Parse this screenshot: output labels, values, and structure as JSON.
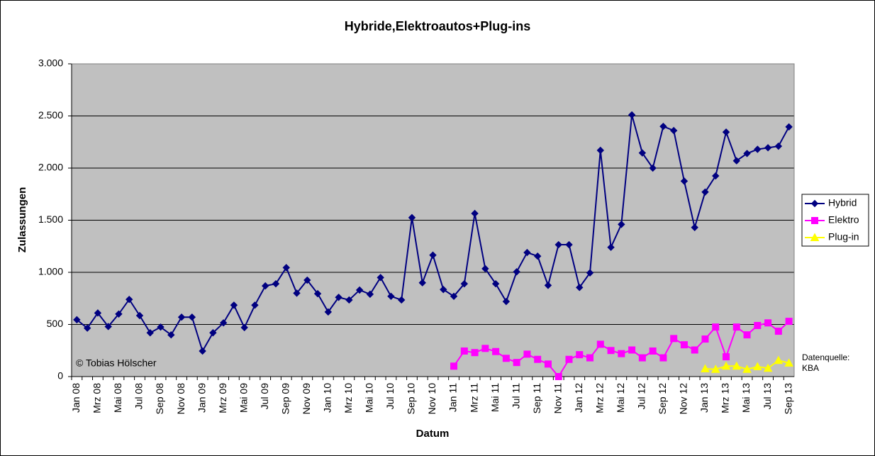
{
  "chart_data": {
    "type": "line",
    "title": "Hybride,Elektroautos+Plug-ins",
    "x_label": "Datum",
    "y_label": "Zulassungen",
    "copyright": "© Tobias Hölscher",
    "source": [
      "Datenquelle:",
      "KBA"
    ],
    "categories": [
      "Jan 08",
      null,
      "Mrz 08",
      null,
      "Mai 08",
      null,
      "Jul 08",
      null,
      "Sep 08",
      null,
      "Nov 08",
      null,
      "Jan 09",
      null,
      "Mrz 09",
      null,
      "Mai 09",
      null,
      "Jul 09",
      null,
      "Sep 09",
      null,
      "Nov 09",
      null,
      "Jan 10",
      null,
      "Mrz 10",
      null,
      "Mai 10",
      null,
      "Jul 10",
      null,
      "Sep 10",
      null,
      "Nov 10",
      null,
      "Jan 11",
      null,
      "Mrz 11",
      null,
      "Mai 11",
      null,
      "Jul 11",
      null,
      "Sep 11",
      null,
      "Nov 11",
      null,
      "Jan 12",
      null,
      "Mrz 12",
      null,
      "Mai 12",
      null,
      "Jul 12",
      null,
      "Sep 12",
      null,
      "Nov 12",
      null,
      "Jan 13",
      null,
      "Mrz 13",
      null,
      "Mai 13",
      null,
      "Jul 13",
      null,
      "Sep 13"
    ],
    "series": [
      {
        "name": "Hybrid",
        "color": "#000080",
        "marker": "diamond",
        "values": [
          545,
          465,
          610,
          480,
          600,
          740,
          585,
          420,
          475,
          400,
          570,
          570,
          245,
          420,
          515,
          685,
          470,
          685,
          870,
          890,
          1045,
          800,
          925,
          795,
          620,
          760,
          735,
          830,
          790,
          950,
          770,
          735,
          1525,
          900,
          1165,
          835,
          770,
          890,
          1565,
          1035,
          890,
          720,
          1005,
          1190,
          1155,
          875,
          1265,
          1265,
          855,
          995,
          2170,
          1240,
          1460,
          2510,
          2145,
          2000,
          2400,
          2360,
          1875,
          1430,
          1770,
          1925,
          2345,
          2070,
          2140,
          2180,
          2195,
          2210,
          2395
        ]
      },
      {
        "name": "Elektro",
        "color": "#ff00ff",
        "marker": "square",
        "values": [
          null,
          null,
          null,
          null,
          null,
          null,
          null,
          null,
          null,
          null,
          null,
          null,
          null,
          null,
          null,
          null,
          null,
          null,
          null,
          null,
          null,
          null,
          null,
          null,
          null,
          null,
          null,
          null,
          null,
          null,
          null,
          null,
          null,
          null,
          null,
          null,
          100,
          245,
          230,
          270,
          240,
          175,
          135,
          215,
          165,
          120,
          0,
          165,
          210,
          180,
          310,
          250,
          220,
          255,
          180,
          245,
          180,
          365,
          305,
          255,
          360,
          475,
          190,
          475,
          400,
          490,
          515,
          435,
          530
        ]
      },
      {
        "name": "Plug-in",
        "color": "#ffff00",
        "marker": "triangle",
        "values": [
          null,
          null,
          null,
          null,
          null,
          null,
          null,
          null,
          null,
          null,
          null,
          null,
          null,
          null,
          null,
          null,
          null,
          null,
          null,
          null,
          null,
          null,
          null,
          null,
          null,
          null,
          null,
          null,
          null,
          null,
          null,
          null,
          null,
          null,
          null,
          null,
          null,
          null,
          null,
          null,
          null,
          null,
          null,
          null,
          null,
          null,
          null,
          null,
          null,
          null,
          null,
          null,
          null,
          null,
          null,
          null,
          null,
          null,
          null,
          null,
          75,
          70,
          100,
          100,
          70,
          95,
          80,
          155,
          130
        ]
      }
    ],
    "ylim": [
      0,
      3000
    ],
    "yticks": [
      0,
      500,
      {
        "value": 1000,
        "label": "1.000"
      },
      {
        "value": 1500,
        "label": "1.500"
      },
      {
        "value": 2000,
        "label": "2.000"
      },
      {
        "value": 2500,
        "label": "2.500"
      },
      {
        "value": 3000,
        "label": "3.000"
      }
    ],
    "grid": true,
    "legend": "right"
  }
}
